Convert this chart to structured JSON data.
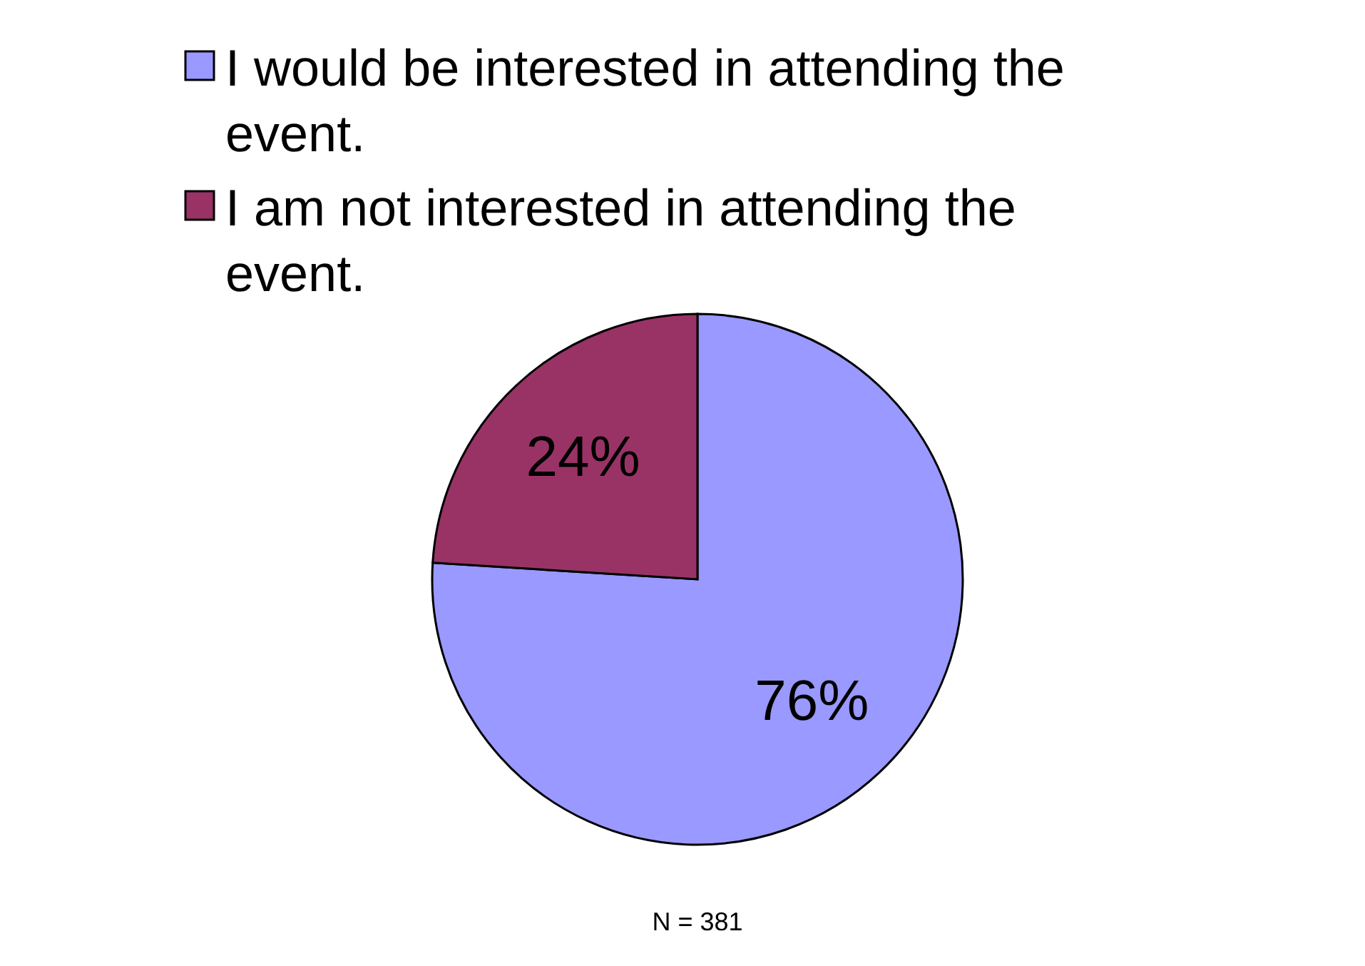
{
  "chart_data": {
    "type": "pie",
    "categories": [
      "I would be interested in attending the event.",
      "I am not interested in attending the event."
    ],
    "values": [
      76,
      24
    ],
    "colors": [
      "#9999ff",
      "#993366"
    ],
    "value_labels": [
      "76%",
      "24%"
    ],
    "legend": "top",
    "annotations": [
      "N = 381"
    ]
  }
}
